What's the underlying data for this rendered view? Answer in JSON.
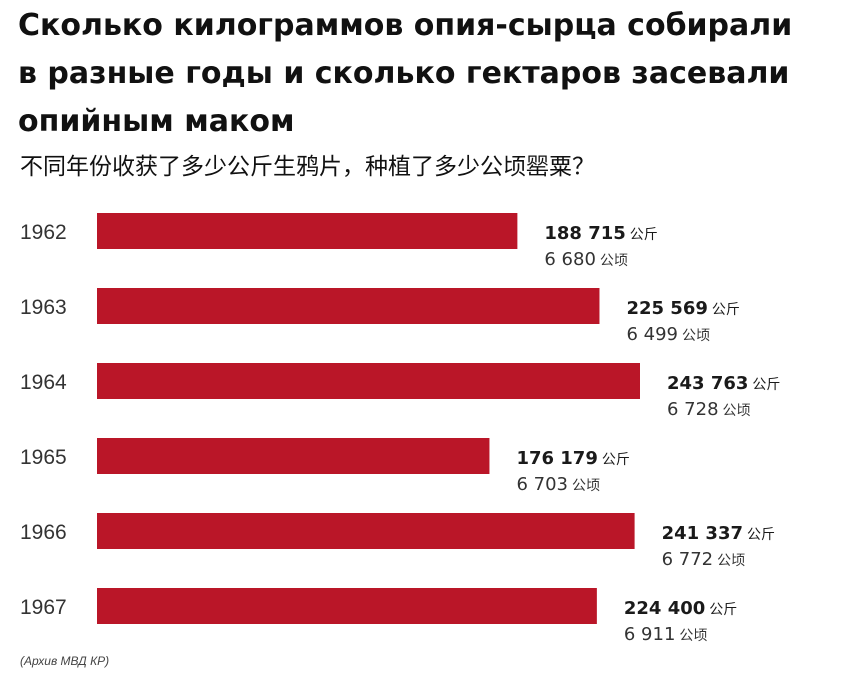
{
  "title": "Сколько килограммов опия-сырца собирали в разные годы и сколько гектаров засевали опийным маком",
  "subtitle": "不同年份收获了多少公斤生鸦片，种植了多少公顷罂粟？",
  "source": "(Архив МВД КР)",
  "colors": {
    "bar": "#ba1628",
    "text": "#1a1a1a"
  },
  "chart_data": {
    "type": "bar",
    "orientation": "horizontal",
    "title": "Сколько килограммов опия-сырца собирали в разные годы и сколько гектаров засевали опийным маком",
    "subtitle": "不同年份收获了多少公斤生鸦片，种植了多少公顷罂粟？",
    "categories": [
      "1962",
      "1963",
      "1964",
      "1965",
      "1966",
      "1967"
    ],
    "series": [
      {
        "name": "公斤",
        "values": [
          188715,
          225569,
          243763,
          176179,
          241337,
          224400
        ],
        "labels": [
          "188 715",
          "225 569",
          "243 763",
          "176 179",
          "241 337",
          "224 400"
        ],
        "unit": "公斤"
      },
      {
        "name": "公顷",
        "values": [
          6680,
          6499,
          6728,
          6703,
          6772,
          6911
        ],
        "labels": [
          "6 680",
          "6 499",
          "6 728",
          "6 703",
          "6 772",
          "6 911"
        ],
        "unit": "公顷"
      }
    ],
    "xlim": [
      0,
      250000
    ],
    "grid": false,
    "legend": "none"
  }
}
